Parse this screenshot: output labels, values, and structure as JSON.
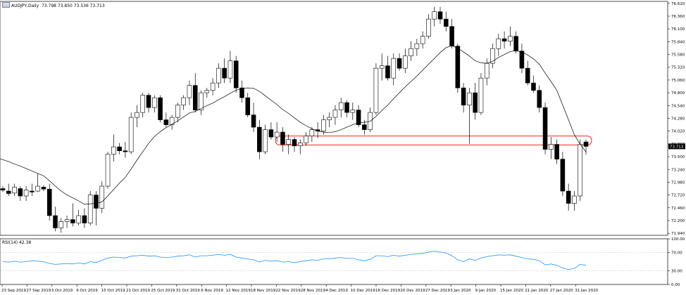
{
  "header": {
    "symbol": "AUDJPY,Daily",
    "ohlc": "73.798 73.850 73.536 73.713"
  },
  "rsi_label": "RSI(14) 42.38",
  "current_price_label": "73.713",
  "colors": {
    "bull_body": "#ffffff",
    "bear_body": "#000000",
    "ma_line": "#000000",
    "rsi_line": "#1e90ff",
    "highlight": "#ff0000",
    "price_tag": "#000000"
  },
  "chart_data": [
    {
      "type": "candlestick",
      "title": "AUDJPY,Daily",
      "y_ticks": [
        "76.620",
        "76.360",
        "76.100",
        "75.840",
        "75.580",
        "75.320",
        "75.060",
        "74.800",
        "74.540",
        "74.280",
        "74.020",
        "73.760",
        "73.500",
        "73.240",
        "72.980",
        "72.720",
        "72.460",
        "72.200",
        "71.940"
      ],
      "ylim": [
        71.9,
        76.66
      ],
      "x_ticks": [
        "23 Sep 2019",
        "27 Sep 2019",
        "3 Oct 2019",
        "9 Oct 2019",
        "15 Oct 2019",
        "21 Oct 2019",
        "25 Oct 2019",
        "31 Oct 2019",
        "6 Nov 2019",
        "12 Nov 2019",
        "18 Nov 2019",
        "22 Nov 2019",
        "28 Nov 2019",
        "4 Dec 2019",
        "10 Dec 2019",
        "16 Dec 2019",
        "20 Dec 2019",
        "27 Dec 2019",
        "3 Jan 2020",
        "9 Jan 2020",
        "15 Jan 2020",
        "21 Jan 2020",
        "27 Jan 2020",
        "31 Jan 2020"
      ],
      "grid": false,
      "highlight_zone": {
        "from": 73.74,
        "to": 73.92,
        "note": "support zone box"
      },
      "candles": [
        [
          72.85,
          72.9,
          72.78,
          72.82
        ],
        [
          72.8,
          72.95,
          72.7,
          72.75
        ],
        [
          72.76,
          72.95,
          72.7,
          72.88
        ],
        [
          72.85,
          72.9,
          72.6,
          72.7
        ],
        [
          72.7,
          72.9,
          72.6,
          72.82
        ],
        [
          72.8,
          72.95,
          72.7,
          72.78
        ],
        [
          72.8,
          73.15,
          72.78,
          72.9
        ],
        [
          72.88,
          72.92,
          72.8,
          72.84
        ],
        [
          72.84,
          72.95,
          72.2,
          72.3
        ],
        [
          72.3,
          72.48,
          71.98,
          72.05
        ],
        [
          72.05,
          72.25,
          71.95,
          72.18
        ],
        [
          72.18,
          72.3,
          72.05,
          72.22
        ],
        [
          72.22,
          72.55,
          72.08,
          72.15
        ],
        [
          72.15,
          72.42,
          72.1,
          72.3
        ],
        [
          72.3,
          72.45,
          72.05,
          72.15
        ],
        [
          72.15,
          72.8,
          72.1,
          72.72
        ],
        [
          72.72,
          72.8,
          72.1,
          72.45
        ],
        [
          72.45,
          73.0,
          72.35,
          72.9
        ],
        [
          72.9,
          73.6,
          72.85,
          73.55
        ],
        [
          73.55,
          73.95,
          73.4,
          73.7
        ],
        [
          73.7,
          73.78,
          73.55,
          73.62
        ],
        [
          73.62,
          73.8,
          73.48,
          73.6
        ],
        [
          73.6,
          74.4,
          73.55,
          74.3
        ],
        [
          74.3,
          74.55,
          74.1,
          74.4
        ],
        [
          74.4,
          74.8,
          74.3,
          74.75
        ],
        [
          74.75,
          74.8,
          74.4,
          74.5
        ],
        [
          74.5,
          74.75,
          74.4,
          74.7
        ],
        [
          74.7,
          74.75,
          74.2,
          74.25
        ],
        [
          74.25,
          74.4,
          74.1,
          74.15
        ],
        [
          74.15,
          74.35,
          74.05,
          74.3
        ],
        [
          74.3,
          74.6,
          74.2,
          74.55
        ],
        [
          74.55,
          74.75,
          74.45,
          74.7
        ],
        [
          74.7,
          75.05,
          74.55,
          74.95
        ],
        [
          74.95,
          75.2,
          74.4,
          74.45
        ],
        [
          74.45,
          74.85,
          74.35,
          74.8
        ],
        [
          74.8,
          74.9,
          74.7,
          74.85
        ],
        [
          74.85,
          75.1,
          74.75,
          75.0
        ],
        [
          75.0,
          75.4,
          74.9,
          75.3
        ],
        [
          75.3,
          75.5,
          75.0,
          75.1
        ],
        [
          75.1,
          75.65,
          75.0,
          75.45
        ],
        [
          75.45,
          75.55,
          74.8,
          74.9
        ],
        [
          74.9,
          75.05,
          74.6,
          74.7
        ],
        [
          74.7,
          74.8,
          74.3,
          74.35
        ],
        [
          74.35,
          74.6,
          74.0,
          74.1
        ],
        [
          74.1,
          74.25,
          73.45,
          73.6
        ],
        [
          73.6,
          74.15,
          73.55,
          74.05
        ],
        [
          74.05,
          74.2,
          73.85,
          73.9
        ],
        [
          73.9,
          74.2,
          73.8,
          74.0
        ],
        [
          74.0,
          74.1,
          73.6,
          73.75
        ],
        [
          73.75,
          73.95,
          73.55,
          73.85
        ],
        [
          73.85,
          73.9,
          73.6,
          73.72
        ],
        [
          73.72,
          73.85,
          73.55,
          73.78
        ],
        [
          73.78,
          74.0,
          73.72,
          73.92
        ],
        [
          73.92,
          74.1,
          73.8,
          74.05
        ],
        [
          74.05,
          74.2,
          73.88,
          74.02
        ],
        [
          74.02,
          74.35,
          73.95,
          74.25
        ],
        [
          74.25,
          74.4,
          74.1,
          74.3
        ],
        [
          74.3,
          74.55,
          74.15,
          74.45
        ],
        [
          74.45,
          74.7,
          74.3,
          74.6
        ],
        [
          74.6,
          74.65,
          74.3,
          74.4
        ],
        [
          74.4,
          74.6,
          74.25,
          74.45
        ],
        [
          74.45,
          74.55,
          74.1,
          74.15
        ],
        [
          74.15,
          74.25,
          73.95,
          74.05
        ],
        [
          74.05,
          74.5,
          74.0,
          74.4
        ],
        [
          74.4,
          75.4,
          74.35,
          75.3
        ],
        [
          75.3,
          75.6,
          75.05,
          75.35
        ],
        [
          75.35,
          75.55,
          75.05,
          75.1
        ],
        [
          75.1,
          75.6,
          74.95,
          75.5
        ],
        [
          75.5,
          75.6,
          75.25,
          75.3
        ],
        [
          75.3,
          75.7,
          75.2,
          75.55
        ],
        [
          75.55,
          75.85,
          75.45,
          75.7
        ],
        [
          75.7,
          75.9,
          75.55,
          75.8
        ],
        [
          75.8,
          76.05,
          75.7,
          75.95
        ],
        [
          75.95,
          76.4,
          75.9,
          76.3
        ],
        [
          76.3,
          76.55,
          76.15,
          76.45
        ],
        [
          76.45,
          76.55,
          76.2,
          76.3
        ],
        [
          76.3,
          76.45,
          76.05,
          76.15
        ],
        [
          76.15,
          76.3,
          75.7,
          75.75
        ],
        [
          75.75,
          75.8,
          74.8,
          74.9
        ],
        [
          74.9,
          75.0,
          74.4,
          74.55
        ],
        [
          74.55,
          74.9,
          73.76,
          74.8
        ],
        [
          74.8,
          75.0,
          74.25,
          74.4
        ],
        [
          74.4,
          75.2,
          74.35,
          75.1
        ],
        [
          75.1,
          75.5,
          74.95,
          75.4
        ],
        [
          75.4,
          75.8,
          75.3,
          75.7
        ],
        [
          75.7,
          76.0,
          75.55,
          75.9
        ],
        [
          75.9,
          76.05,
          75.7,
          75.85
        ],
        [
          75.85,
          76.15,
          75.75,
          75.95
        ],
        [
          75.95,
          76.05,
          75.6,
          75.65
        ],
        [
          75.65,
          75.8,
          75.2,
          75.3
        ],
        [
          75.3,
          75.45,
          74.95,
          75.0
        ],
        [
          75.0,
          75.15,
          74.8,
          74.85
        ],
        [
          74.85,
          74.95,
          74.4,
          74.5
        ],
        [
          74.5,
          74.6,
          73.55,
          73.65
        ],
        [
          73.65,
          73.9,
          73.45,
          73.75
        ],
        [
          73.75,
          73.85,
          73.35,
          73.45
        ],
        [
          73.45,
          73.6,
          72.7,
          72.8
        ],
        [
          72.8,
          72.95,
          72.4,
          72.55
        ],
        [
          72.55,
          72.8,
          72.4,
          72.7
        ],
        [
          72.7,
          73.85,
          72.6,
          73.75
        ],
        [
          73.8,
          73.85,
          73.54,
          73.71
        ]
      ],
      "moving_average": [
        73.44,
        73.4,
        73.35,
        73.31,
        73.26,
        73.21,
        73.16,
        73.11,
        73.01,
        72.9,
        72.8,
        72.72,
        72.66,
        72.6,
        72.53,
        72.54,
        72.55,
        72.58,
        72.7,
        72.83,
        72.96,
        73.08,
        73.25,
        73.43,
        73.6,
        73.77,
        73.91,
        74.01,
        74.09,
        74.16,
        74.23,
        74.31,
        74.39,
        74.42,
        74.48,
        74.54,
        74.59,
        74.66,
        74.72,
        74.79,
        74.85,
        74.89,
        74.9,
        74.89,
        74.83,
        74.74,
        74.65,
        74.56,
        74.46,
        74.38,
        74.29,
        74.2,
        74.13,
        74.07,
        74.02,
        74.0,
        73.99,
        74.01,
        74.05,
        74.1,
        74.15,
        74.19,
        74.2,
        74.22,
        74.32,
        74.44,
        74.55,
        74.68,
        74.8,
        74.92,
        75.03,
        75.14,
        75.26,
        75.38,
        75.5,
        75.62,
        75.72,
        75.76,
        75.71,
        75.63,
        75.55,
        75.45,
        75.41,
        75.4,
        75.44,
        75.52,
        75.58,
        75.64,
        75.66,
        75.63,
        75.57,
        75.49,
        75.38,
        75.2,
        75.03,
        74.85,
        74.55,
        74.25,
        73.95,
        73.75,
        73.6
      ]
    },
    {
      "type": "line",
      "title": "RSI(14) 42.38",
      "y_ticks": [
        "100.00",
        "70.00",
        "30.00",
        "0.00"
      ],
      "ylim": [
        0,
        100
      ],
      "series": [
        {
          "name": "RSI(14)",
          "values": [
            50,
            49,
            51,
            49,
            50,
            52,
            51,
            50,
            46,
            44,
            45,
            46,
            45,
            47,
            45,
            50,
            48,
            53,
            58,
            60,
            59,
            58,
            62,
            63,
            64,
            62,
            63,
            60,
            59,
            60,
            62,
            63,
            65,
            60,
            63,
            63,
            64,
            66,
            64,
            66,
            60,
            58,
            56,
            54,
            49,
            53,
            51,
            52,
            49,
            50,
            48,
            50,
            52,
            54,
            53,
            56,
            56,
            58,
            59,
            57,
            57,
            54,
            52,
            55,
            63,
            63,
            61,
            64,
            62,
            64,
            66,
            67,
            68,
            71,
            73,
            71,
            69,
            63,
            54,
            50,
            56,
            53,
            58,
            61,
            63,
            65,
            64,
            65,
            62,
            59,
            56,
            55,
            52,
            43,
            45,
            42,
            36,
            33,
            35,
            44,
            42
          ]
        }
      ]
    }
  ]
}
